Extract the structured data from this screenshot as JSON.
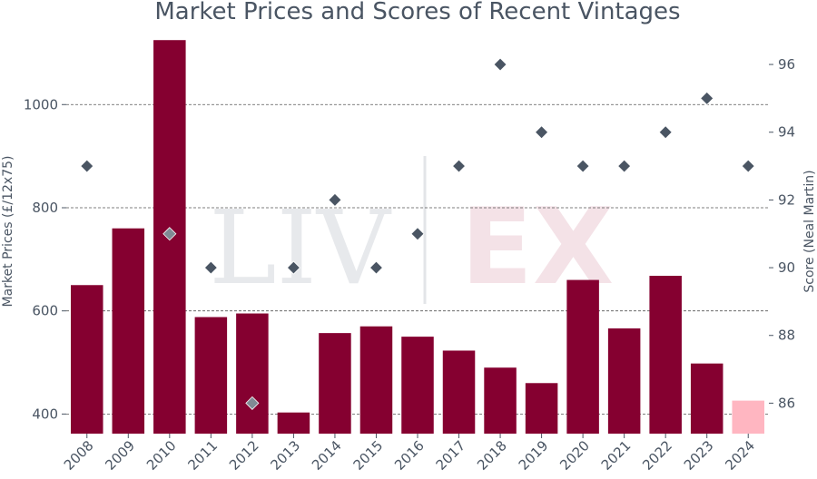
{
  "chart_data": {
    "type": "bar",
    "title": "Market Prices and Scores of Recent Vintages",
    "xlabel": "",
    "ylabel": "Market Prices (£/12x75)",
    "y2label": "Score (Neal Martin)",
    "watermark": {
      "left": "LIV",
      "right": "EX"
    },
    "categories": [
      "2008",
      "2009",
      "2010",
      "2011",
      "2012",
      "2013",
      "2014",
      "2015",
      "2016",
      "2017",
      "2018",
      "2019",
      "2020",
      "2021",
      "2022",
      "2023",
      "2024"
    ],
    "series": [
      {
        "name": "Market Prices",
        "axis": "left",
        "kind": "bar",
        "values": [
          650,
          760,
          1125,
          588,
          595,
          403,
          557,
          570,
          550,
          523,
          490,
          460,
          660,
          566,
          668,
          498,
          426
        ],
        "colors": [
          "#850030",
          "#850030",
          "#850030",
          "#850030",
          "#850030",
          "#850030",
          "#850030",
          "#850030",
          "#850030",
          "#850030",
          "#850030",
          "#850030",
          "#850030",
          "#850030",
          "#850030",
          "#850030",
          "#ffb6c1"
        ]
      },
      {
        "name": "Score",
        "axis": "right",
        "kind": "scatter",
        "x": [
          "2008",
          "2010",
          "2011",
          "2012",
          "2013",
          "2014",
          "2015",
          "2016",
          "2017",
          "2018",
          "2019",
          "2020",
          "2021",
          "2022",
          "2023",
          "2024"
        ],
        "values": [
          93,
          91,
          90,
          86,
          90,
          92,
          90,
          91,
          93,
          96,
          94,
          93,
          93,
          94,
          95,
          93
        ],
        "colors": [
          "#4a5563",
          "#808a94",
          "#4a5563",
          "#808a94",
          "#4a5563",
          "#4a5563",
          "#4a5563",
          "#4a5563",
          "#4a5563",
          "#4a5563",
          "#4a5563",
          "#4a5563",
          "#4a5563",
          "#4a5563",
          "#4a5563",
          "#4a5563"
        ]
      }
    ],
    "yticks": [
      400,
      600,
      800,
      1000
    ],
    "ylim": [
      362,
      1150
    ],
    "y2ticks": [
      86,
      88,
      90,
      92,
      94,
      96
    ],
    "y2lim": [
      85.1,
      97.1
    ],
    "grid": "horizontal dashed at left-axis ticks",
    "colors": {
      "bar": "#850030",
      "bar_estimate": "#ffb6c1",
      "marker": "#4a5563",
      "text": "#4a5563",
      "grid": "#555555"
    }
  }
}
